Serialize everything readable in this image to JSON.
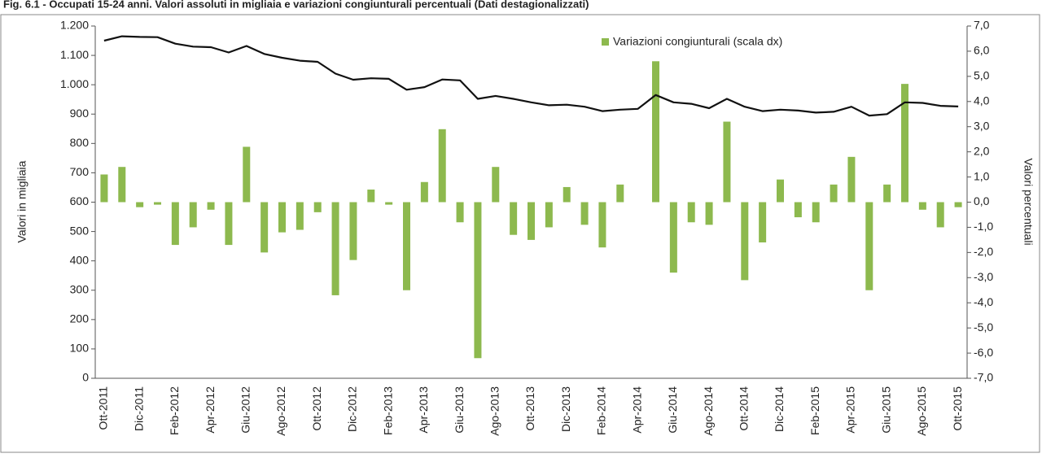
{
  "chart_data": {
    "type": "combo",
    "title": "Fig. 6.1 - Occupati 15-24 anni. Valori assoluti in migliaia e variazioni congiunturali percentuali (Dati destagionalizzati)",
    "y_label": "Valori in migliaia",
    "y2_label": "Valori percentuali",
    "categories": [
      "Ott-2011",
      null,
      "Dic-2011",
      null,
      "Feb-2012",
      null,
      "Apr-2012",
      null,
      "Giu-2012",
      null,
      "Ago-2012",
      null,
      "Ott-2012",
      null,
      "Dic-2012",
      null,
      "Feb-2013",
      null,
      "Apr-2013",
      null,
      "Giu-2013",
      null,
      "Ago-2013",
      null,
      "Ott-2013",
      null,
      "Dic-2013",
      null,
      "Feb-2014",
      null,
      "Apr-2014",
      null,
      "Giu-2014",
      null,
      "Ago-2014",
      null,
      "Ott-2014",
      null,
      "Dic-2014",
      null,
      "Feb-2015",
      null,
      "Apr-2015",
      null,
      "Giu-2015",
      null,
      "Ago-2015",
      null,
      "Ott-2015"
    ],
    "series": [
      {
        "type": "bar",
        "axis": "y2",
        "name": "Variazioni congiunturali (scala dx)",
        "color": "#8db94e",
        "values": [
          1.1,
          1.4,
          -0.2,
          -0.1,
          -1.7,
          -1.0,
          -0.3,
          -1.7,
          2.2,
          -2.0,
          -1.2,
          -1.1,
          -0.4,
          -3.7,
          -2.3,
          0.5,
          -0.1,
          -3.5,
          0.8,
          2.9,
          -0.8,
          -6.2,
          1.4,
          -1.3,
          -1.5,
          -1.0,
          0.6,
          -0.9,
          -1.8,
          0.7,
          0,
          5.6,
          -2.8,
          -0.8,
          -0.9,
          3.2,
          -3.1,
          -1.6,
          0.9,
          -0.6,
          -0.8,
          0.7,
          1.8,
          -3.5,
          0.7,
          4.7,
          -0.3,
          -1.0,
          -0.2
        ]
      },
      {
        "type": "line",
        "axis": "y",
        "color": "#111111",
        "values": [
          1150,
          1165,
          1163,
          1162,
          1140,
          1130,
          1128,
          1110,
          1132,
          1105,
          1092,
          1082,
          1078,
          1038,
          1017,
          1022,
          1020,
          983,
          992,
          1018,
          1015,
          952,
          962,
          952,
          940,
          930,
          932,
          925,
          910,
          915,
          918,
          965,
          940,
          935,
          920,
          952,
          925,
          910,
          915,
          912,
          905,
          908,
          925,
          895,
          900,
          940,
          938,
          928,
          926
        ]
      }
    ],
    "ylim": [
      0,
      1200
    ],
    "yticks": [
      0,
      100,
      200,
      300,
      400,
      500,
      600,
      700,
      800,
      900,
      {
        "value": 1000,
        "label": "1.000"
      },
      {
        "value": 1100,
        "label": "1.100"
      },
      {
        "value": 1200,
        "label": "1.200"
      }
    ],
    "y2lim": [
      -7,
      7
    ],
    "y2ticks": [
      {
        "value": -7,
        "label": "-7,0"
      },
      {
        "value": -6,
        "label": "-6,0"
      },
      {
        "value": -5,
        "label": "-5,0"
      },
      {
        "value": -4,
        "label": "-4,0"
      },
      {
        "value": -3,
        "label": "-3,0"
      },
      {
        "value": -2,
        "label": "-2,0"
      },
      {
        "value": -1,
        "label": "-1,0"
      },
      {
        "value": 0,
        "label": "0,0"
      },
      {
        "value": 1,
        "label": "1,0"
      },
      {
        "value": 2,
        "label": "2,0"
      },
      {
        "value": 3,
        "label": "3,0"
      },
      {
        "value": 4,
        "label": "4,0"
      },
      {
        "value": 5,
        "label": "5,0"
      },
      {
        "value": 6,
        "label": "6,0"
      },
      {
        "value": 7,
        "label": "7,0"
      }
    ],
    "legend": "top-right"
  }
}
